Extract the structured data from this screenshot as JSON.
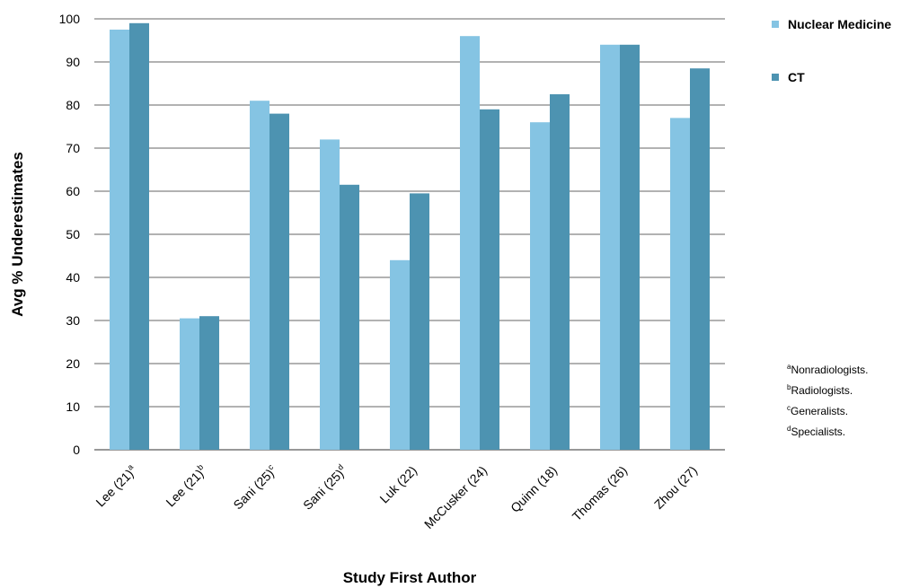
{
  "chart_data": {
    "type": "bar",
    "xlabel": "Study First Author",
    "ylabel": "Avg % Underestimates",
    "ylim": [
      0,
      100
    ],
    "yticks": [
      0,
      10,
      20,
      30,
      40,
      50,
      60,
      70,
      80,
      90,
      100
    ],
    "grid": true,
    "legend_position": "top-right",
    "categories": [
      {
        "label": "Lee (21)",
        "sup": "a"
      },
      {
        "label": "Lee (21)",
        "sup": "b"
      },
      {
        "label": "Sani (25)",
        "sup": "c"
      },
      {
        "label": "Sani (25)",
        "sup": "d"
      },
      {
        "label": "Luk (22)",
        "sup": ""
      },
      {
        "label": "McCusker (24)",
        "sup": ""
      },
      {
        "label": "Quinn (18)",
        "sup": ""
      },
      {
        "label": "Thomas (26)",
        "sup": ""
      },
      {
        "label": "Zhou (27)",
        "sup": ""
      }
    ],
    "series": [
      {
        "name": "Nuclear Medicine",
        "color": "#85c4e3",
        "values": [
          97.5,
          30.5,
          81,
          72,
          44,
          96,
          76,
          94,
          77
        ]
      },
      {
        "name": "CT",
        "color": "#4d93b1",
        "values": [
          99,
          31,
          78,
          61.5,
          59.5,
          79,
          82.5,
          94,
          88.5
        ]
      }
    ],
    "footnotes": [
      {
        "sup": "a",
        "text": "Nonradiologists."
      },
      {
        "sup": "b",
        "text": "Radiologists."
      },
      {
        "sup": "c",
        "text": "Generalists."
      },
      {
        "sup": "d",
        "text": "Specialists."
      }
    ]
  }
}
